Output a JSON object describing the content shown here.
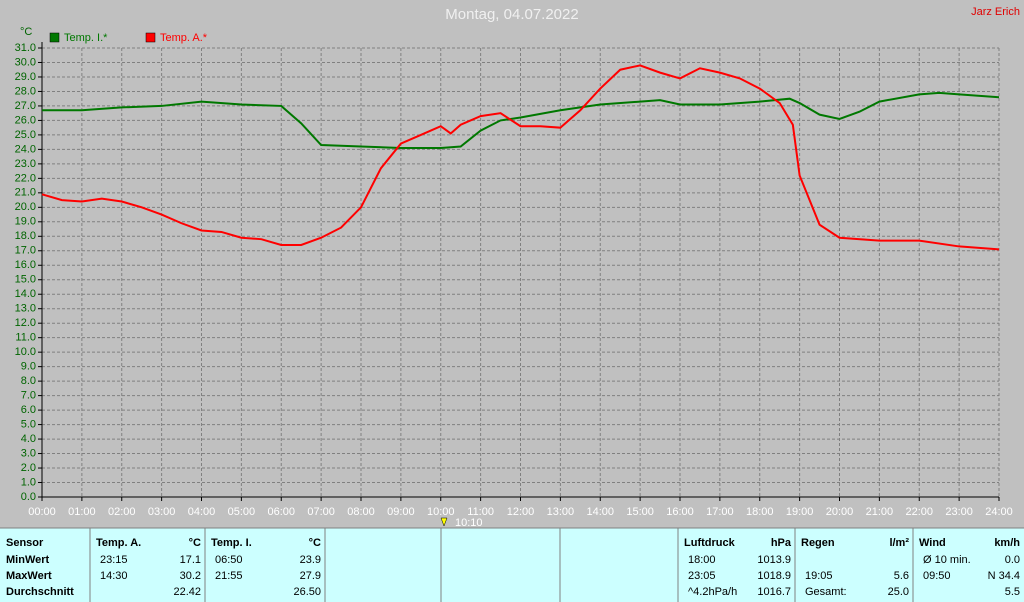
{
  "chart_data": {
    "type": "line",
    "title": "Montag, 04.07.2022",
    "author": "Jarz Erich",
    "y_unit": "°C",
    "marker": "10:10",
    "grid": true,
    "legend": "top-left",
    "xlim": [
      0,
      24
    ],
    "xticks": [
      {
        "value": 0,
        "label": "00:00"
      },
      {
        "value": 1,
        "label": "01:00"
      },
      {
        "value": 2,
        "label": "02:00"
      },
      {
        "value": 3,
        "label": "03:00"
      },
      {
        "value": 4,
        "label": "04:00"
      },
      {
        "value": 5,
        "label": "05:00"
      },
      {
        "value": 6,
        "label": "06:00"
      },
      {
        "value": 7,
        "label": "07:00"
      },
      {
        "value": 8,
        "label": "08:00"
      },
      {
        "value": 9,
        "label": "09:00"
      },
      {
        "value": 10,
        "label": "10:00"
      },
      {
        "value": 11,
        "label": "11:00"
      },
      {
        "value": 12,
        "label": "12:00"
      },
      {
        "value": 13,
        "label": "13:00"
      },
      {
        "value": 14,
        "label": "14:00"
      },
      {
        "value": 15,
        "label": "15:00"
      },
      {
        "value": 16,
        "label": "16:00"
      },
      {
        "value": 17,
        "label": "17:00"
      },
      {
        "value": 18,
        "label": "18:00"
      },
      {
        "value": 19,
        "label": "19:00"
      },
      {
        "value": 20,
        "label": "20:00"
      },
      {
        "value": 21,
        "label": "21:00"
      },
      {
        "value": 22,
        "label": "22:00"
      },
      {
        "value": 23,
        "label": "23:00"
      },
      {
        "value": 24,
        "label": "24:00"
      }
    ],
    "ylim": [
      0,
      31
    ],
    "yticks": [
      {
        "value": 0,
        "label": "0.0"
      },
      {
        "value": 1,
        "label": "1.0"
      },
      {
        "value": 2,
        "label": "2.0"
      },
      {
        "value": 3,
        "label": "3.0"
      },
      {
        "value": 4,
        "label": "4.0"
      },
      {
        "value": 5,
        "label": "5.0"
      },
      {
        "value": 6,
        "label": "6.0"
      },
      {
        "value": 7,
        "label": "7.0"
      },
      {
        "value": 8,
        "label": "8.0"
      },
      {
        "value": 9,
        "label": "9.0"
      },
      {
        "value": 10,
        "label": "10.0"
      },
      {
        "value": 11,
        "label": "11.0"
      },
      {
        "value": 12,
        "label": "12.0"
      },
      {
        "value": 13,
        "label": "13.0"
      },
      {
        "value": 14,
        "label": "14.0"
      },
      {
        "value": 15,
        "label": "15.0"
      },
      {
        "value": 16,
        "label": "16.0"
      },
      {
        "value": 17,
        "label": "17.0"
      },
      {
        "value": 18,
        "label": "18.0"
      },
      {
        "value": 19,
        "label": "19.0"
      },
      {
        "value": 20,
        "label": "20.0"
      },
      {
        "value": 21,
        "label": "21.0"
      },
      {
        "value": 22,
        "label": "22.0"
      },
      {
        "value": 23,
        "label": "23.0"
      },
      {
        "value": 24,
        "label": "24.0"
      },
      {
        "value": 25,
        "label": "25.0"
      },
      {
        "value": 26,
        "label": "26.0"
      },
      {
        "value": 27,
        "label": "27.0"
      },
      {
        "value": 28,
        "label": "28.0"
      },
      {
        "value": 29,
        "label": "29.0"
      },
      {
        "value": 30,
        "label": "30.0"
      },
      {
        "value": 31,
        "label": "31.0"
      }
    ],
    "series": [
      {
        "name": "Temp. I.*",
        "color": "#007800",
        "x": [
          0,
          1,
          2,
          3,
          4,
          5,
          6,
          6.5,
          7,
          8,
          9,
          10,
          10.5,
          11,
          11.5,
          12,
          13,
          14,
          15,
          15.5,
          16,
          17,
          18,
          18.75,
          19,
          19.5,
          20,
          20.5,
          21,
          22,
          22.5,
          23,
          24
        ],
        "values": [
          26.7,
          26.7,
          26.9,
          27.0,
          27.3,
          27.1,
          27.0,
          25.8,
          24.3,
          24.2,
          24.1,
          24.1,
          24.2,
          25.3,
          26.0,
          26.2,
          26.7,
          27.1,
          27.3,
          27.4,
          27.1,
          27.1,
          27.3,
          27.5,
          27.2,
          26.4,
          26.1,
          26.6,
          27.3,
          27.8,
          27.9,
          27.8,
          27.6
        ]
      },
      {
        "name": "Temp. A.*",
        "color": "#ff0000",
        "x": [
          0,
          0.5,
          1,
          1.5,
          2,
          2.5,
          3,
          3.5,
          4,
          4.5,
          5,
          5.5,
          6,
          6.5,
          7,
          7.5,
          8,
          8.5,
          9,
          9.5,
          10,
          10.25,
          10.5,
          11,
          11.5,
          12,
          12.5,
          13,
          13.5,
          14,
          14.5,
          15,
          15.5,
          16,
          16.5,
          17,
          17.5,
          18,
          18.5,
          18.83,
          19,
          19.5,
          20,
          21,
          22,
          23,
          24
        ],
        "values": [
          20.9,
          20.5,
          20.4,
          20.6,
          20.4,
          20.0,
          19.5,
          18.9,
          18.4,
          18.3,
          17.9,
          17.8,
          17.4,
          17.4,
          17.9,
          18.6,
          20.0,
          22.7,
          24.4,
          25.0,
          25.6,
          25.1,
          25.7,
          26.3,
          26.5,
          25.6,
          25.6,
          25.5,
          26.7,
          28.2,
          29.5,
          29.8,
          29.3,
          28.9,
          29.6,
          29.3,
          28.9,
          28.2,
          27.2,
          25.7,
          22.2,
          18.8,
          17.9,
          17.7,
          17.7,
          17.3,
          17.1
        ]
      }
    ]
  },
  "table": {
    "groups": [
      {
        "header": [
          "Sensor"
        ],
        "rows": [
          [
            "MinWert"
          ],
          [
            "MaxWert"
          ],
          [
            "Durchschnitt"
          ]
        ]
      },
      {
        "header": [
          "Temp. A.",
          "°C"
        ],
        "rows": [
          [
            "23:15",
            "17.1"
          ],
          [
            "14:30",
            "30.2"
          ],
          [
            null,
            "22.42"
          ]
        ]
      },
      {
        "header": [
          "Temp. I.",
          "°C"
        ],
        "rows": [
          [
            "06:50",
            "23.9"
          ],
          [
            "21:55",
            "27.9"
          ],
          [
            null,
            "26.50"
          ]
        ]
      },
      {
        "header": [
          "Luftdruck",
          "hPa"
        ],
        "rows": [
          [
            "18:00",
            "1013.9"
          ],
          [
            "23:05",
            "1018.9"
          ],
          [
            "^4.2hPa/h",
            "1016.7"
          ]
        ]
      },
      {
        "header": [
          "Regen",
          "l/m²"
        ],
        "rows": [
          [
            null,
            null
          ],
          [
            "19:05",
            "5.6"
          ],
          [
            "Gesamt:",
            "25.0"
          ]
        ]
      },
      {
        "header": [
          "Wind",
          "km/h"
        ],
        "rows": [
          [
            "Ø 10 min.",
            "0.0"
          ],
          [
            "09:50",
            "N 34.4"
          ],
          [
            null,
            "5.5"
          ]
        ]
      }
    ]
  }
}
